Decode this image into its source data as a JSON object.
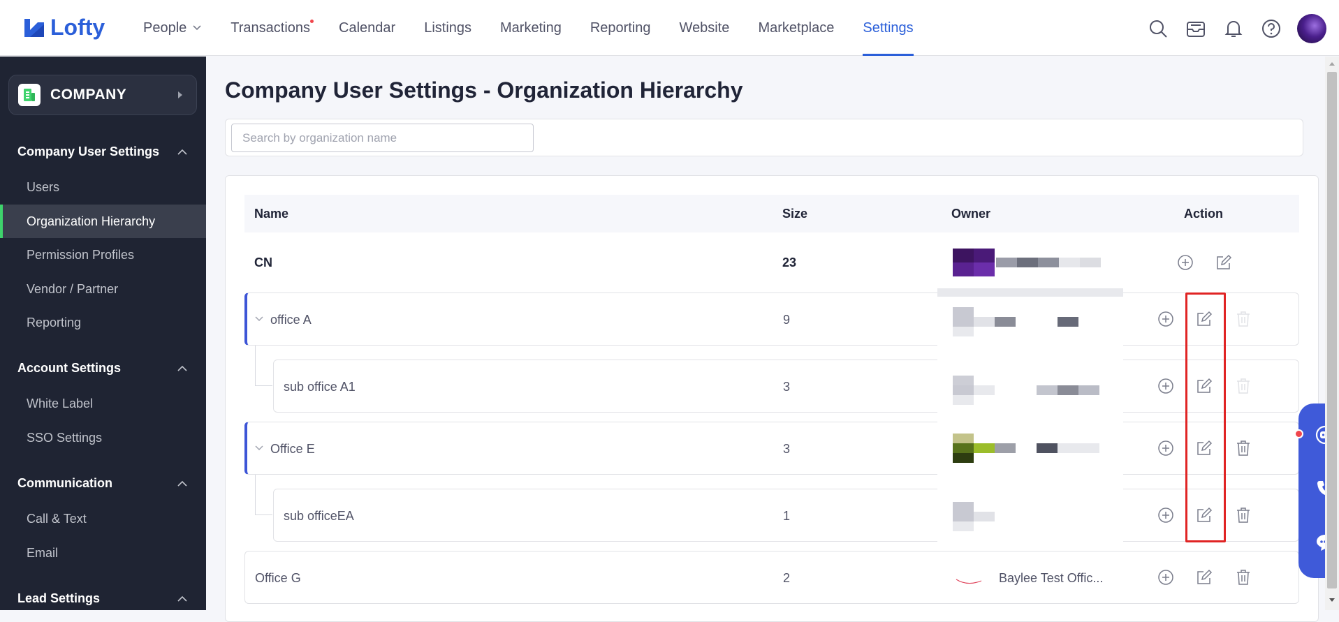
{
  "app": {
    "name": "Lofty"
  },
  "nav": {
    "items": [
      {
        "label": "People",
        "has_dropdown": true
      },
      {
        "label": "Transactions",
        "has_dot": true
      },
      {
        "label": "Calendar"
      },
      {
        "label": "Listings"
      },
      {
        "label": "Marketing"
      },
      {
        "label": "Reporting"
      },
      {
        "label": "Website"
      },
      {
        "label": "Marketplace"
      },
      {
        "label": "Settings",
        "active": true
      }
    ],
    "icons": [
      "search-icon",
      "inbox-icon",
      "bell-icon",
      "help-icon",
      "avatar"
    ]
  },
  "sidebar": {
    "company_label": "COMPANY",
    "sections": [
      {
        "title": "Company User Settings",
        "items": [
          "Users",
          "Organization Hierarchy",
          "Permission Profiles",
          "Vendor / Partner",
          "Reporting"
        ]
      },
      {
        "title": "Account Settings",
        "items": [
          "White Label",
          "SSO Settings"
        ]
      },
      {
        "title": "Communication",
        "items": [
          "Call & Text",
          "Email"
        ]
      },
      {
        "title": "Lead Settings",
        "items": []
      }
    ],
    "active_item": "Organization Hierarchy"
  },
  "page": {
    "title": "Company User Settings - Organization Hierarchy",
    "search_placeholder": "Search by organization name"
  },
  "table": {
    "columns": [
      "Name",
      "Size",
      "Owner",
      "Action"
    ],
    "rows": [
      {
        "name": "CN",
        "size": "23",
        "owner": ""
      },
      {
        "name": "office A",
        "size": "9",
        "owner": ""
      },
      {
        "name": "sub office A1",
        "size": "3",
        "owner": ""
      },
      {
        "name": "Office E",
        "size": "3",
        "owner": ""
      },
      {
        "name": "sub officeEA",
        "size": "1",
        "owner": ""
      },
      {
        "name": "Office G",
        "size": "2",
        "owner": "Baylee Test Offic..."
      }
    ]
  },
  "colors": {
    "accent": "#2b5fd9",
    "sidebar_bg": "#1f2433",
    "active_green": "#3ed36c",
    "highlight_red": "#e02424",
    "float_panel": "#3f5ad9"
  }
}
